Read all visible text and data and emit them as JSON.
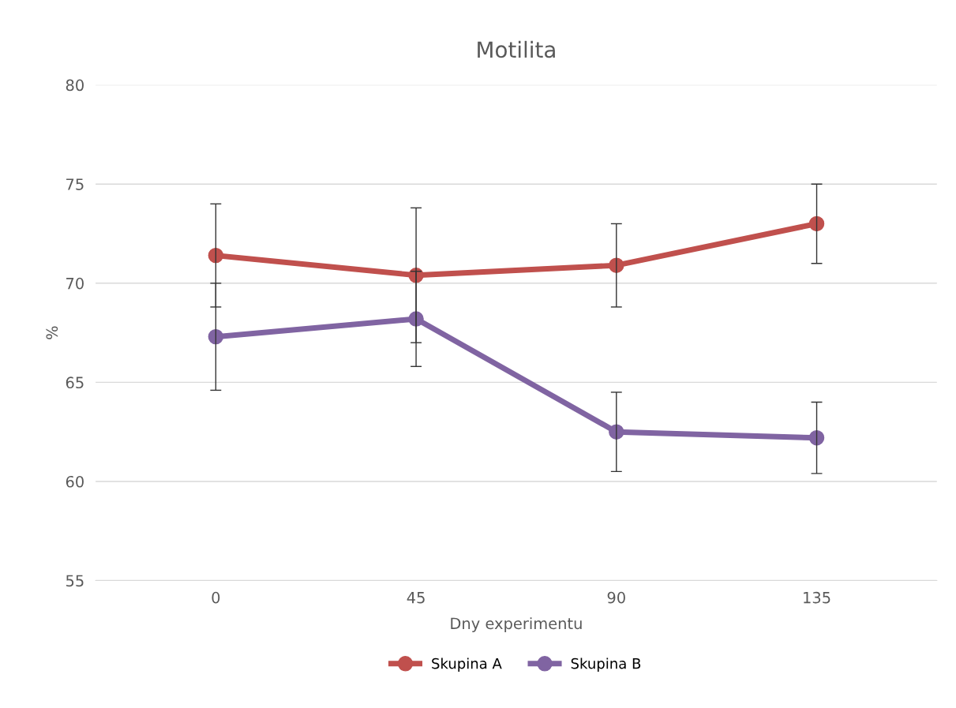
{
  "chart_data": {
    "type": "line",
    "title": "Motilita",
    "xlabel": "Dny experimentu",
    "ylabel": "%",
    "categories": [
      "0",
      "45",
      "90",
      "135"
    ],
    "series": [
      {
        "name": "Skupina A",
        "color": "#c0504d",
        "values": [
          71.4,
          70.4,
          70.9,
          73.0
        ],
        "errors": [
          2.6,
          3.4,
          2.1,
          2.0
        ]
      },
      {
        "name": "Skupina B",
        "color": "#8064a2",
        "values": [
          67.3,
          68.2,
          62.5,
          62.2
        ],
        "errors": [
          2.7,
          2.4,
          2.0,
          1.8
        ]
      }
    ],
    "ylim": [
      55,
      80
    ],
    "yticks": [
      55,
      60,
      65,
      70,
      75,
      80
    ],
    "grid": "y",
    "legend": "bottom",
    "marker": "circle",
    "line_style": "solid"
  }
}
